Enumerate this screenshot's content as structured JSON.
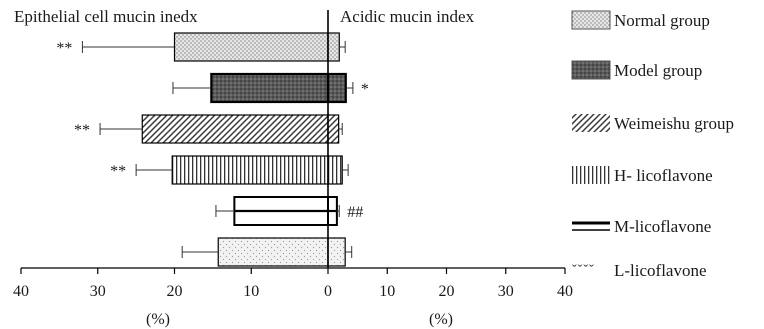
{
  "chart_data": {
    "type": "bar",
    "orientation": "horizontal",
    "left_title": "Epithelial cell mucin inedx",
    "right_title": "Acidic mucin index",
    "left_xlabel": "(%)",
    "right_xlabel": "(%)",
    "left_xlim": [
      0,
      40
    ],
    "right_xlim": [
      0,
      40
    ],
    "left_ticks": [
      "40",
      "30",
      "20",
      "10",
      "0"
    ],
    "right_ticks": [
      "10",
      "20",
      "30",
      "40"
    ],
    "grid": false,
    "legend_position": "right",
    "categories": [
      "Normal group",
      "Model group",
      "Weimeishu group",
      "H- licoflavone",
      "M-licoflavone",
      "L-licoflavone"
    ],
    "series": [
      {
        "name": "Epithelial cell mucin inedx",
        "values": [
          20,
          15.2,
          24.2,
          20.3,
          12.2,
          14.3
        ],
        "errors": [
          12,
          5,
          5.5,
          4.7,
          2.4,
          4.7
        ],
        "significance": [
          "**",
          "",
          "**",
          "**",
          "",
          ""
        ]
      },
      {
        "name": "Acidic mucin index",
        "values": [
          1.9,
          3.0,
          1.8,
          2.4,
          1.5,
          2.9
        ],
        "errors": [
          1.0,
          1.2,
          0.6,
          1.0,
          0.4,
          1.1
        ],
        "significance": [
          "",
          "*",
          "",
          "",
          "##",
          ""
        ]
      }
    ]
  }
}
